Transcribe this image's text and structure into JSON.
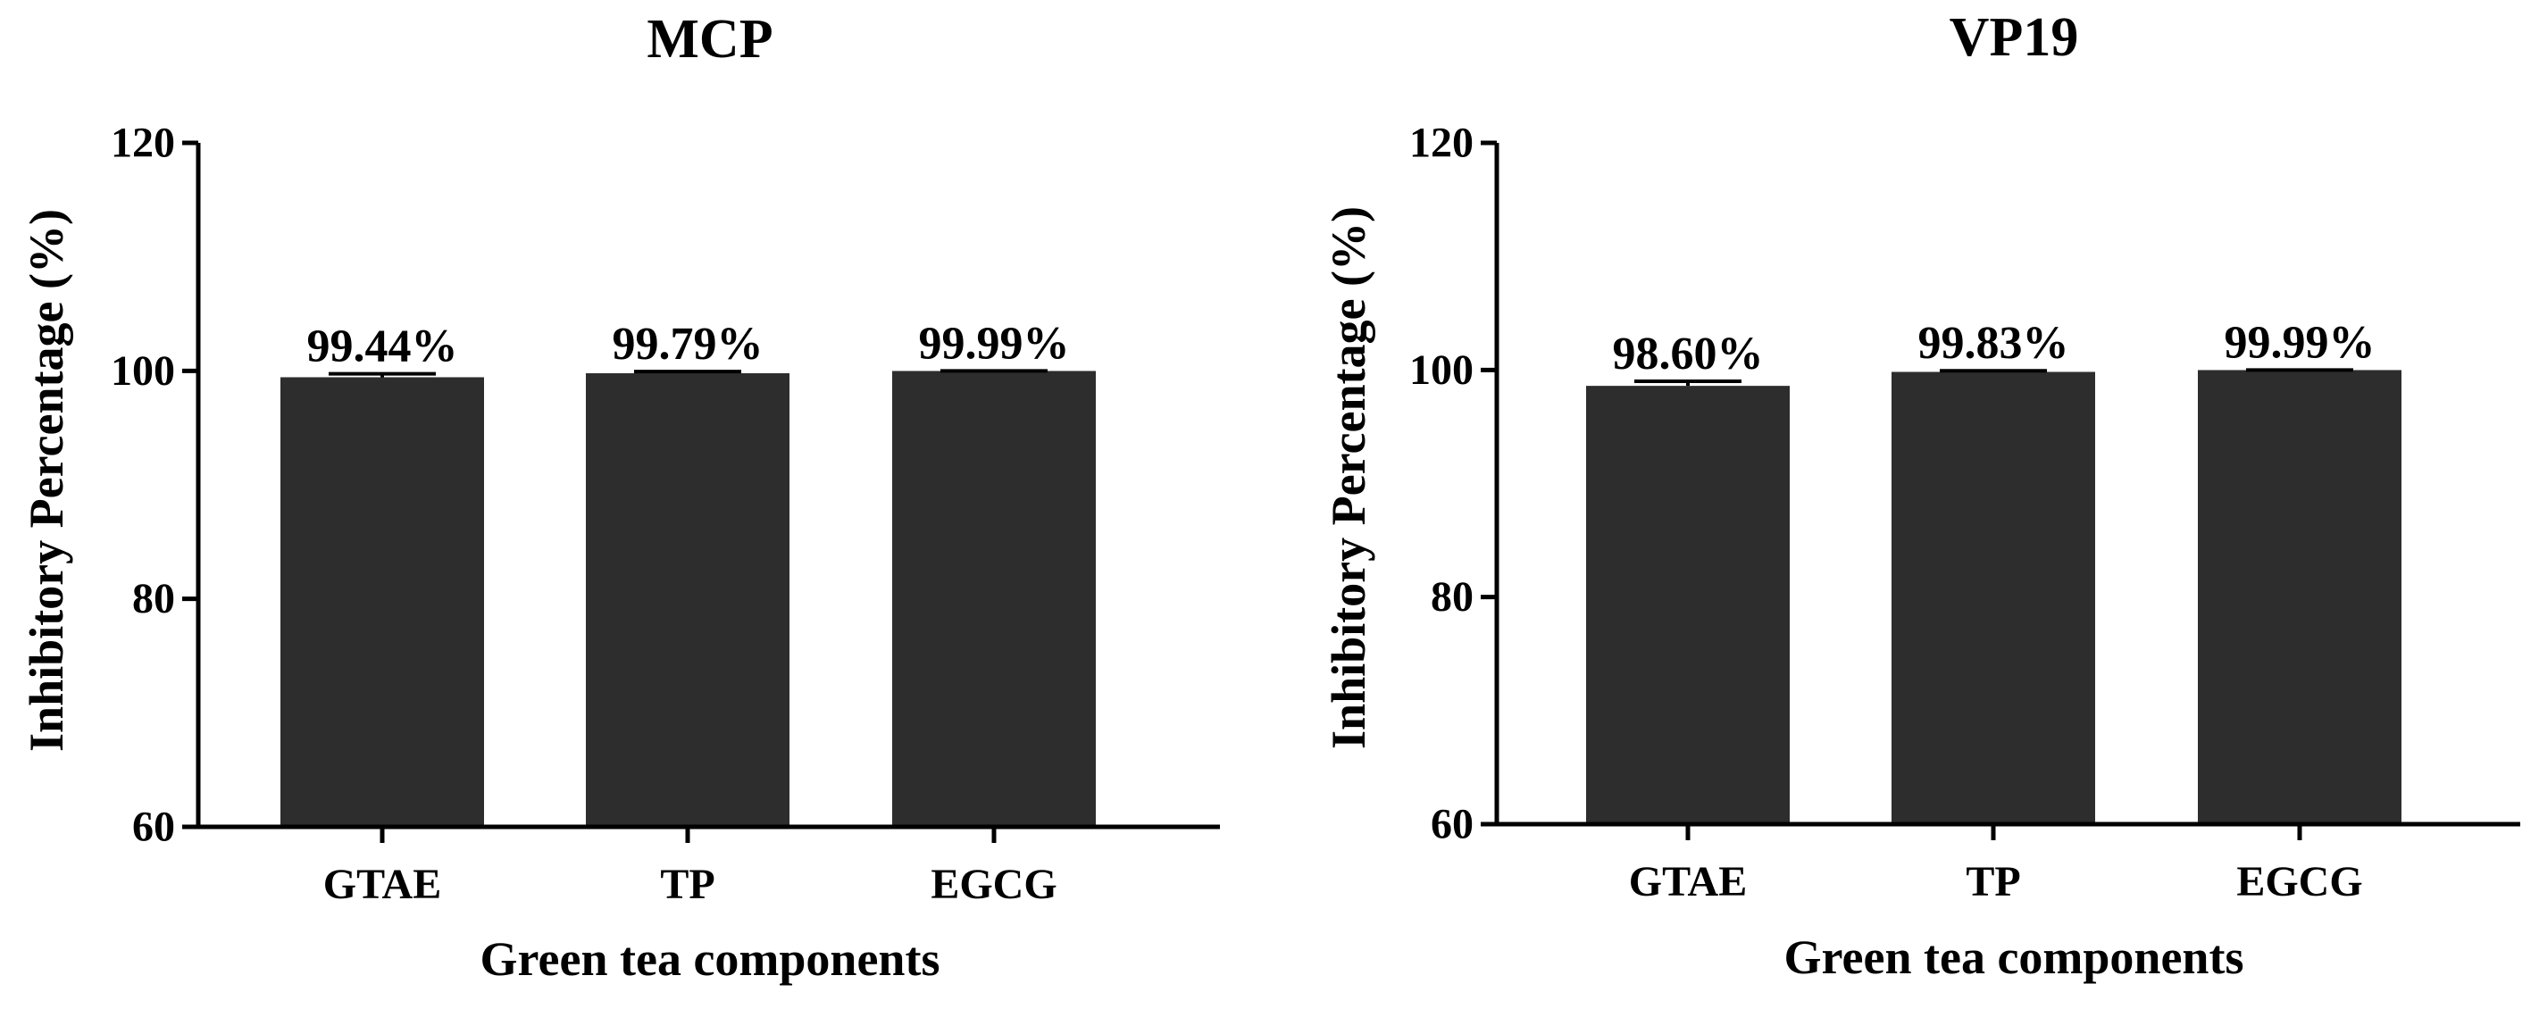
{
  "figure": {
    "colors": {
      "bar": "#2d2d2d",
      "axis": "#000000",
      "background": "#ffffff"
    }
  },
  "chart_data": [
    {
      "type": "bar",
      "title": "MCP",
      "xlabel": "Green tea components",
      "ylabel": "Inhibitory Percentage (%)",
      "categories": [
        "GTAE",
        "TP",
        "EGCG"
      ],
      "values": [
        99.44,
        99.79,
        99.99
      ],
      "data_labels": [
        "99.44%",
        "99.79%",
        "99.99%"
      ],
      "errors": [
        0.3,
        0.15,
        0.01
      ],
      "ylim": [
        60,
        120
      ],
      "yticks": [
        60,
        80,
        100,
        120
      ],
      "ytick_labels": [
        "60",
        "80",
        "100",
        "120"
      ],
      "grid": false,
      "legend": "none"
    },
    {
      "type": "bar",
      "title": "VP19",
      "xlabel": "Green tea components",
      "ylabel": "Inhibitory Percentage (%)",
      "categories": [
        "GTAE",
        "TP",
        "EGCG"
      ],
      "values": [
        98.6,
        99.83,
        99.99
      ],
      "data_labels": [
        "98.60%",
        "99.83%",
        "99.99%"
      ],
      "errors": [
        0.4,
        0.1,
        0.01
      ],
      "ylim": [
        60,
        120
      ],
      "yticks": [
        60,
        80,
        100,
        120
      ],
      "ytick_labels": [
        "60",
        "80",
        "100",
        "120"
      ],
      "grid": false,
      "legend": "none"
    }
  ]
}
